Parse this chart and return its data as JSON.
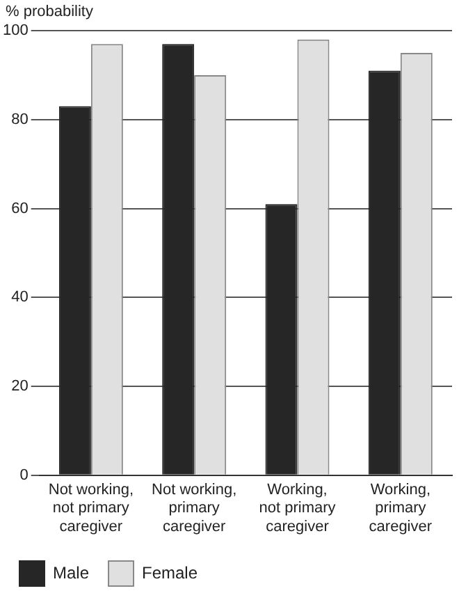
{
  "chart_data": {
    "type": "bar",
    "ylabel": "% probability",
    "categories": [
      "Not working, not primary caregiver",
      "Not working, primary caregiver",
      "Working, not primary caregiver",
      "Working, primary caregiver"
    ],
    "series": [
      {
        "name": "Male",
        "color": "#262626",
        "values": [
          83,
          97,
          61,
          91
        ]
      },
      {
        "name": "Female",
        "color": "#e0e0e0",
        "values": [
          97,
          90,
          98,
          95
        ]
      }
    ],
    "ylim": [
      0,
      100
    ],
    "yticks": [
      0,
      20,
      40,
      60,
      80,
      100
    ],
    "grid": "y",
    "legend": "bottom left"
  }
}
